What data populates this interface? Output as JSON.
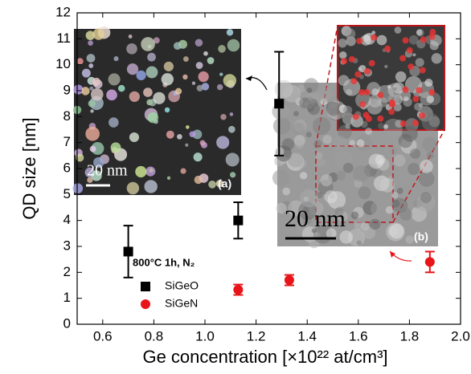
{
  "chart_data": {
    "type": "scatter",
    "xlabel": "Ge concentration [×10²² at/cm³]",
    "ylabel": "QD size [nm]",
    "xlim": [
      0.5,
      2.0
    ],
    "xticks": [
      0.6,
      0.8,
      {
        "value": 1,
        "label": "1.0"
      },
      1.2,
      1.4,
      1.6,
      1.8,
      {
        "value": 2,
        "label": "2.0"
      }
    ],
    "ylim": [
      0,
      12
    ],
    "yticks": [
      0,
      1,
      2,
      3,
      4,
      5,
      6,
      7,
      8,
      9,
      10,
      11,
      12
    ],
    "legend_title": "800°C 1h, N₂",
    "series": [
      {
        "name": "SiGeO",
        "color": "#000000",
        "marker": "square",
        "x": [
          0.7,
          1.13,
          1.29
        ],
        "values": [
          2.8,
          4.0,
          8.5
        ],
        "errors": [
          1.0,
          0.7,
          2.0
        ]
      },
      {
        "name": "SiGeN",
        "color": "#e8141a",
        "marker": "circle",
        "x": [
          1.13,
          1.33,
          1.88
        ],
        "values": [
          1.33,
          1.7,
          2.4
        ],
        "errors": [
          0.2,
          0.2,
          0.4
        ]
      }
    ],
    "annotations": [
      "20 nm",
      "(a)",
      "20 nm",
      "(b)"
    ]
  }
}
